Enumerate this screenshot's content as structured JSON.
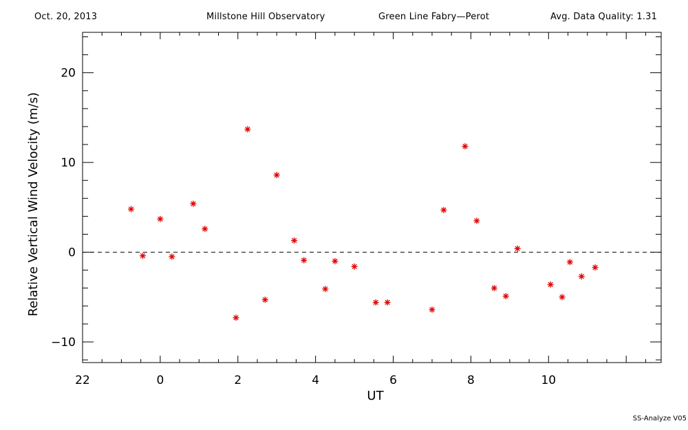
{
  "header": {
    "date": "Oct. 20, 2013",
    "observatory": "Millstone Hill Observatory",
    "instrument": "Green Line Fabry—Perot",
    "quality": "Avg. Data Quality: 1.31"
  },
  "footer": {
    "version": "SS-Analyze V05"
  },
  "colors": {
    "marker": "#e00000",
    "axes": "#000000",
    "background": "#ffffff"
  },
  "chart_data": {
    "type": "scatter",
    "title": "",
    "xlabel": "UT",
    "ylabel": "Relative Vertical Wind Velocity (m/s)",
    "xlim": [
      -2.0,
      12.9
    ],
    "ylim": [
      -12.3,
      24.5
    ],
    "x_tick_labels": [
      "22",
      "0",
      "2",
      "4",
      "6",
      "8",
      "10"
    ],
    "x_tick_values": [
      22,
      0,
      2,
      4,
      6,
      8,
      10
    ],
    "y_tick_labels": [
      "−10",
      "0",
      "10",
      "20"
    ],
    "y_tick_values": [
      -10,
      0,
      10,
      20
    ],
    "reference_line": {
      "y": 0,
      "style": "dashed"
    },
    "marker": "asterisk",
    "series": [
      {
        "x": [
          -0.75,
          -0.45,
          0.0,
          0.3,
          0.85,
          1.15,
          1.95,
          2.25,
          2.7,
          3.0,
          3.45,
          3.7,
          4.25,
          4.5,
          5.0,
          5.55,
          5.85,
          7.0,
          7.3,
          7.85,
          8.15,
          8.6,
          8.9,
          9.2,
          10.05,
          10.35,
          10.55,
          10.85,
          11.2
        ],
        "y": [
          4.8,
          -0.4,
          3.7,
          -0.5,
          5.4,
          2.6,
          -7.3,
          13.7,
          -5.3,
          8.6,
          1.3,
          -0.9,
          -4.1,
          -1.0,
          -1.6,
          -5.6,
          -5.6,
          -6.4,
          4.7,
          11.8,
          3.5,
          -4.0,
          -4.9,
          0.4,
          -3.6,
          -5.0,
          -1.1,
          -2.7,
          -1.7
        ]
      }
    ]
  }
}
